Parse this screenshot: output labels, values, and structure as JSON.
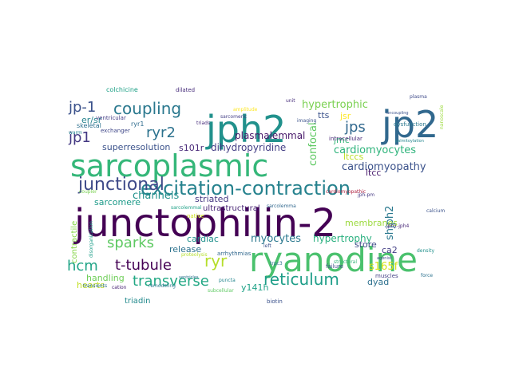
{
  "words": [
    {
      "text": "junctophilin-2",
      "color": "#440154"
    },
    {
      "text": "sarcoplasmic",
      "color": "#35b779"
    },
    {
      "text": "ryanodine",
      "color": "#4ac16d"
    },
    {
      "text": "jp2",
      "color": "#31688e"
    },
    {
      "text": "jph2",
      "color": "#21918c"
    },
    {
      "text": "excitation-contraction",
      "color": "#26828e"
    },
    {
      "text": "junctional",
      "color": "#3e4a89"
    },
    {
      "text": "coupling",
      "color": "#2a788e"
    },
    {
      "text": "reticulum",
      "color": "#1f9e89"
    },
    {
      "text": "transverse",
      "color": "#22a884"
    },
    {
      "text": "t-tubule",
      "color": "#440154"
    },
    {
      "text": "sparks",
      "color": "#5ec962"
    },
    {
      "text": "jp-1",
      "color": "#3b528b"
    },
    {
      "text": "jp1",
      "color": "#443983"
    },
    {
      "text": "ryr2",
      "color": "#2c728e"
    },
    {
      "text": "jps",
      "color": "#31688e"
    },
    {
      "text": "hcm",
      "color": "#20a486"
    },
    {
      "text": "ryr",
      "color": "#b5de2b"
    },
    {
      "text": "hypertrophic",
      "color": "#7ad151"
    },
    {
      "text": "cardiomyocytes",
      "color": "#2fb47c"
    },
    {
      "text": "cardiomyopathy",
      "color": "#3b528b"
    },
    {
      "text": "channels",
      "color": "#21918c"
    },
    {
      "text": "myocytes",
      "color": "#2a788e"
    },
    {
      "text": "hypertrophy",
      "color": "#2ab07f"
    },
    {
      "text": "dihydropyridine",
      "color": "#433e85"
    },
    {
      "text": "plasmalemmal",
      "color": "#48186a"
    },
    {
      "text": "confocal",
      "color": "#5ec962"
    },
    {
      "text": "superresolution",
      "color": "#3b528b"
    },
    {
      "text": "s101r",
      "color": "#482878"
    },
    {
      "text": "jmc",
      "color": "#35b779"
    },
    {
      "text": "ltccs",
      "color": "#bddf26"
    },
    {
      "text": "ltcc",
      "color": "#481a6c"
    },
    {
      "text": "striated",
      "color": "#453781"
    },
    {
      "text": "sarcomere",
      "color": "#1e9b8a"
    },
    {
      "text": "ultrastructural",
      "color": "#482475"
    },
    {
      "text": "release",
      "color": "#2c728e"
    },
    {
      "text": "cardiac",
      "color": "#21918c"
    },
    {
      "text": "handling",
      "color": "#6ece58"
    },
    {
      "text": "contractile",
      "color": "#86d549"
    },
    {
      "text": "hearts",
      "color": "#c2df23"
    },
    {
      "text": "triadin",
      "color": "#238a8d"
    },
    {
      "text": "y141h",
      "color": "#1fa287"
    },
    {
      "text": "store",
      "color": "#3e4a89"
    },
    {
      "text": "dyad",
      "color": "#2d708e"
    },
    {
      "text": "s165f",
      "color": "#d8e219"
    },
    {
      "text": "shjph2",
      "color": "#2a788e"
    },
    {
      "text": "ca2",
      "color": "#433e85"
    },
    {
      "text": "membranes",
      "color": "#9bd93c"
    },
    {
      "text": "er/sr",
      "color": "#26828e"
    },
    {
      "text": "jsr",
      "color": "#fde725"
    },
    {
      "text": "tts",
      "color": "#3b528b"
    },
    {
      "text": "ryr1",
      "color": "#2f6c8e"
    },
    {
      "text": "ventricular",
      "color": "#433e85"
    },
    {
      "text": "skeletal",
      "color": "#2d708e"
    },
    {
      "text": "colchicine",
      "color": "#1fa187"
    },
    {
      "text": "dilated",
      "color": "#472d7b"
    },
    {
      "text": "exchanger",
      "color": "#3f4788"
    },
    {
      "text": "native",
      "color": "#cde11d"
    },
    {
      "text": "arrhythmias",
      "color": "#31688e"
    },
    {
      "text": "proteolysis",
      "color": "#b5de2b"
    },
    {
      "text": "disorganization",
      "color": "#1f9e89"
    },
    {
      "text": "biotin",
      "color": "#3b528b"
    },
    {
      "text": "cation",
      "color": "#482475"
    },
    {
      "text": "failure",
      "color": "#3e4a89"
    },
    {
      "text": "muscles",
      "color": "#433e85"
    },
    {
      "text": "force",
      "color": "#2c728e"
    },
    {
      "text": "intracellular",
      "color": "#482878"
    },
    {
      "text": "imaging",
      "color": "#3b528b"
    },
    {
      "text": "dysfunction",
      "color": "#2a788e"
    },
    {
      "text": "sarcolemma",
      "color": "#31688e"
    },
    {
      "text": "sarcolemmal",
      "color": "#1fa187"
    },
    {
      "text": "cardiomyopathic",
      "color": "#ae1f3e"
    },
    {
      "text": "coupler",
      "color": "#7ad151"
    },
    {
      "text": "puncta",
      "color": "#24868e"
    },
    {
      "text": "calcium",
      "color": "#3b528b"
    },
    {
      "text": "structural",
      "color": "#35b779"
    },
    {
      "text": "remodeling",
      "color": "#2a788e"
    },
    {
      "text": "triads",
      "color": "#472d7b"
    },
    {
      "text": "jph-pm",
      "color": "#443983"
    },
    {
      "text": "plasma",
      "color": "#3e4a89"
    },
    {
      "text": "jph1-jph4",
      "color": "#482878"
    },
    {
      "text": "trpc3",
      "color": "#2c728e"
    },
    {
      "text": "subcellular",
      "color": "#5ec962"
    },
    {
      "text": "left",
      "color": "#3b528b"
    },
    {
      "text": "warm",
      "color": "#26828e"
    },
    {
      "text": "transients",
      "color": "#2c728e"
    },
    {
      "text": "sarcomeric",
      "color": "#433e85"
    },
    {
      "text": "density",
      "color": "#21918c"
    },
    {
      "text": "amplitude",
      "color": "#fde725"
    },
    {
      "text": "uncoupling",
      "color": "#3b528b"
    },
    {
      "text": "nanoscale",
      "color": "#9bd93c"
    },
    {
      "text": "palmitoylation",
      "color": "#24868e"
    },
    {
      "text": "ventricles",
      "color": "#2d708e"
    },
    {
      "text": "unit",
      "color": "#472d7b"
    },
    {
      "text": "agonist",
      "color": "#3e4a89"
    }
  ]
}
